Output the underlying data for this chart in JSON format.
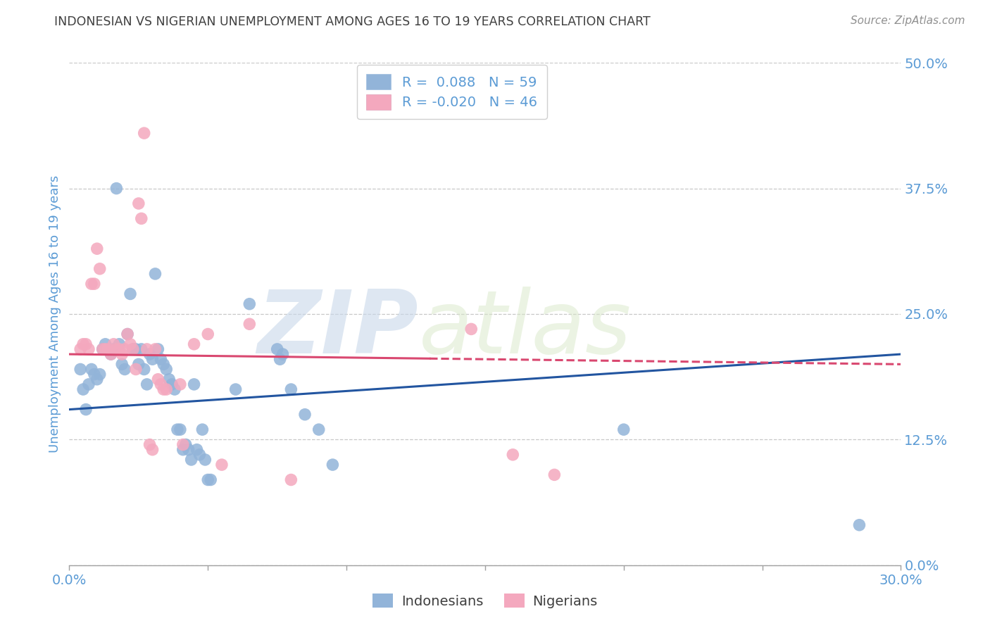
{
  "title": "INDONESIAN VS NIGERIAN UNEMPLOYMENT AMONG AGES 16 TO 19 YEARS CORRELATION CHART",
  "source": "Source: ZipAtlas.com",
  "ylabel_label": "Unemployment Among Ages 16 to 19 years",
  "legend_bottom": [
    "Indonesians",
    "Nigerians"
  ],
  "blue_color": "#92b4d9",
  "pink_color": "#f4a8be",
  "line_blue": "#2255a0",
  "line_pink": "#d94870",
  "watermark_zip": "ZIP",
  "watermark_atlas": "atlas",
  "title_color": "#404040",
  "axis_color": "#5b9bd5",
  "source_color": "#909090",
  "blue_scatter": [
    [
      0.004,
      0.195
    ],
    [
      0.005,
      0.175
    ],
    [
      0.006,
      0.155
    ],
    [
      0.007,
      0.18
    ],
    [
      0.008,
      0.195
    ],
    [
      0.009,
      0.19
    ],
    [
      0.01,
      0.185
    ],
    [
      0.011,
      0.19
    ],
    [
      0.012,
      0.215
    ],
    [
      0.013,
      0.22
    ],
    [
      0.014,
      0.215
    ],
    [
      0.015,
      0.21
    ],
    [
      0.016,
      0.215
    ],
    [
      0.017,
      0.375
    ],
    [
      0.018,
      0.22
    ],
    [
      0.019,
      0.2
    ],
    [
      0.02,
      0.195
    ],
    [
      0.021,
      0.23
    ],
    [
      0.022,
      0.27
    ],
    [
      0.023,
      0.215
    ],
    [
      0.024,
      0.215
    ],
    [
      0.025,
      0.2
    ],
    [
      0.026,
      0.215
    ],
    [
      0.027,
      0.195
    ],
    [
      0.028,
      0.18
    ],
    [
      0.029,
      0.21
    ],
    [
      0.03,
      0.205
    ],
    [
      0.031,
      0.29
    ],
    [
      0.032,
      0.215
    ],
    [
      0.033,
      0.205
    ],
    [
      0.034,
      0.2
    ],
    [
      0.035,
      0.195
    ],
    [
      0.036,
      0.185
    ],
    [
      0.037,
      0.18
    ],
    [
      0.038,
      0.175
    ],
    [
      0.039,
      0.135
    ],
    [
      0.04,
      0.135
    ],
    [
      0.041,
      0.115
    ],
    [
      0.042,
      0.12
    ],
    [
      0.043,
      0.115
    ],
    [
      0.044,
      0.105
    ],
    [
      0.045,
      0.18
    ],
    [
      0.046,
      0.115
    ],
    [
      0.047,
      0.11
    ],
    [
      0.048,
      0.135
    ],
    [
      0.049,
      0.105
    ],
    [
      0.05,
      0.085
    ],
    [
      0.051,
      0.085
    ],
    [
      0.06,
      0.175
    ],
    [
      0.065,
      0.26
    ],
    [
      0.075,
      0.215
    ],
    [
      0.076,
      0.205
    ],
    [
      0.077,
      0.21
    ],
    [
      0.08,
      0.175
    ],
    [
      0.085,
      0.15
    ],
    [
      0.09,
      0.135
    ],
    [
      0.095,
      0.1
    ],
    [
      0.2,
      0.135
    ],
    [
      0.285,
      0.04
    ]
  ],
  "pink_scatter": [
    [
      0.004,
      0.215
    ],
    [
      0.005,
      0.22
    ],
    [
      0.006,
      0.22
    ],
    [
      0.007,
      0.215
    ],
    [
      0.008,
      0.28
    ],
    [
      0.009,
      0.28
    ],
    [
      0.01,
      0.315
    ],
    [
      0.011,
      0.295
    ],
    [
      0.012,
      0.215
    ],
    [
      0.013,
      0.215
    ],
    [
      0.014,
      0.215
    ],
    [
      0.015,
      0.21
    ],
    [
      0.016,
      0.22
    ],
    [
      0.017,
      0.215
    ],
    [
      0.018,
      0.215
    ],
    [
      0.019,
      0.21
    ],
    [
      0.02,
      0.215
    ],
    [
      0.021,
      0.23
    ],
    [
      0.022,
      0.22
    ],
    [
      0.023,
      0.215
    ],
    [
      0.024,
      0.195
    ],
    [
      0.025,
      0.36
    ],
    [
      0.026,
      0.345
    ],
    [
      0.027,
      0.43
    ],
    [
      0.028,
      0.215
    ],
    [
      0.029,
      0.12
    ],
    [
      0.03,
      0.115
    ],
    [
      0.031,
      0.215
    ],
    [
      0.032,
      0.185
    ],
    [
      0.033,
      0.18
    ],
    [
      0.034,
      0.175
    ],
    [
      0.035,
      0.175
    ],
    [
      0.04,
      0.18
    ],
    [
      0.041,
      0.12
    ],
    [
      0.045,
      0.22
    ],
    [
      0.05,
      0.23
    ],
    [
      0.055,
      0.1
    ],
    [
      0.065,
      0.24
    ],
    [
      0.08,
      0.085
    ],
    [
      0.145,
      0.235
    ],
    [
      0.16,
      0.11
    ],
    [
      0.175,
      0.09
    ]
  ],
  "xlim": [
    0.0,
    0.3
  ],
  "ylim": [
    0.0,
    0.5
  ],
  "blue_line_x": [
    0.0,
    0.3
  ],
  "blue_line_y": [
    0.155,
    0.21
  ],
  "pink_line_x": [
    0.0,
    0.3
  ],
  "pink_line_y": [
    0.21,
    0.2
  ],
  "xtick_vals": [
    0.0,
    0.05,
    0.1,
    0.15,
    0.2,
    0.25,
    0.3
  ],
  "ytick_vals": [
    0.0,
    0.125,
    0.25,
    0.375,
    0.5
  ]
}
